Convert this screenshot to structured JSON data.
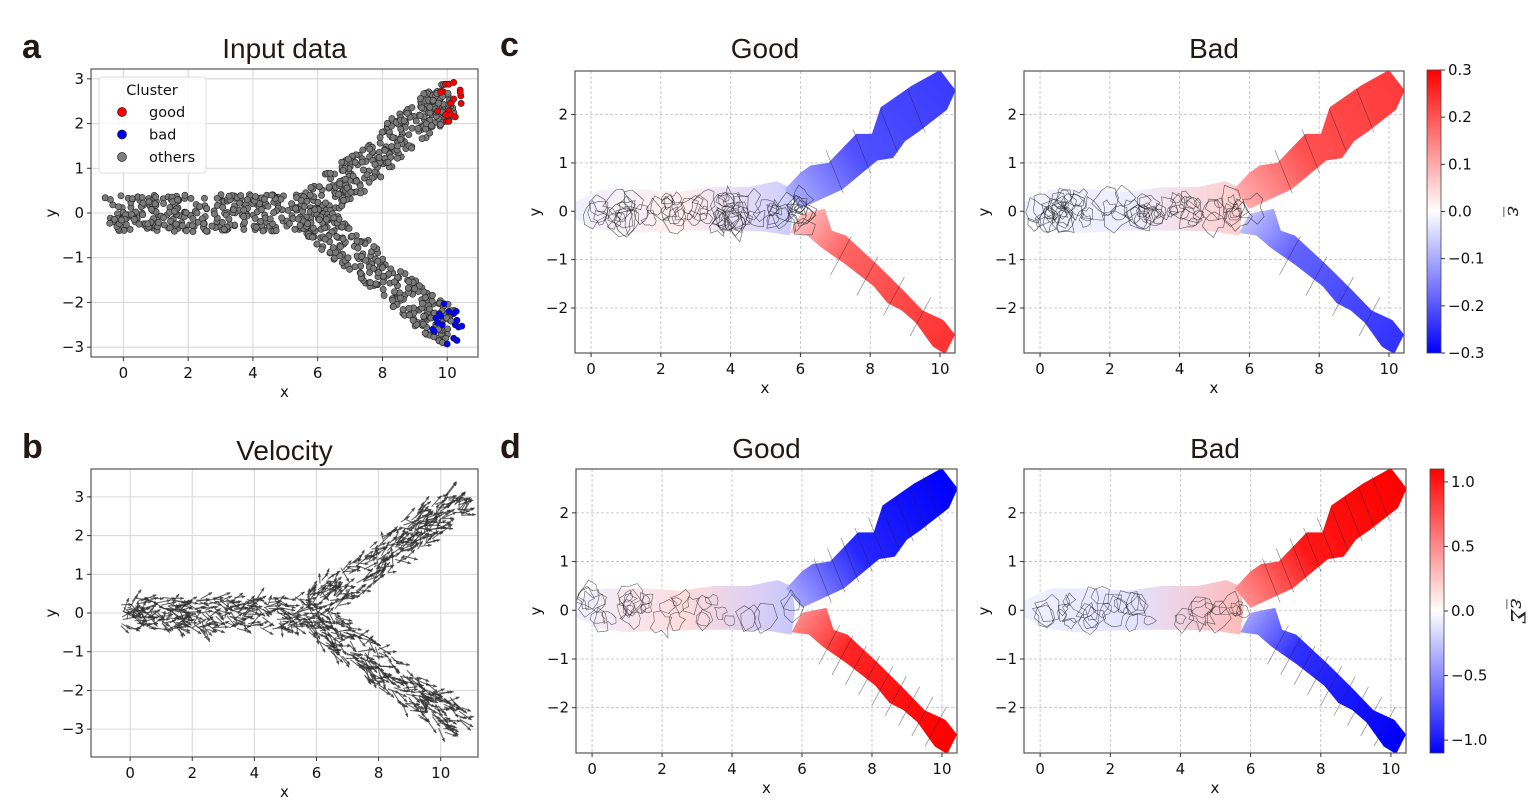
{
  "figure": {
    "panel_letters": [
      "a",
      "b",
      "c",
      "d"
    ]
  },
  "chart_data": [
    {
      "id": "a",
      "type": "scatter",
      "title": "Input data",
      "xlabel": "x",
      "ylabel": "y",
      "xlim": [
        -1.0,
        10.95
      ],
      "ylim": [
        -3.22,
        3.22
      ],
      "xticks": [
        0,
        2,
        4,
        6,
        8,
        10
      ],
      "yticks": [
        -3,
        -2,
        -1,
        0,
        1,
        2,
        3
      ],
      "xtick_labels": [
        "0",
        "2",
        "4",
        "6",
        "8",
        "10"
      ],
      "ytick_labels": [
        "−3",
        "−2",
        "−1",
        "0",
        "1",
        "2",
        "3"
      ],
      "grid": true,
      "legend": {
        "title": "Cluster",
        "placement": "upper-left",
        "entries": [
          {
            "label": "good",
            "color": "#ff0000"
          },
          {
            "label": "bad",
            "color": "#0000ff"
          },
          {
            "label": "others",
            "color": "#808080"
          }
        ]
      },
      "trunk": {
        "x_range": [
          -0.4,
          5.8
        ],
        "y_center": 0.0,
        "y_halfwidth": 0.42
      },
      "branches": [
        {
          "name": "upper",
          "centerline": [
            [
              5.8,
              0.05
            ],
            [
              6.6,
              0.6
            ],
            [
              7.5,
              1.0
            ],
            [
              8.3,
              1.6
            ],
            [
              9.0,
              2.0
            ],
            [
              9.6,
              2.35
            ],
            [
              10.1,
              2.6
            ]
          ],
          "halfwidth": 0.45
        },
        {
          "name": "lower",
          "centerline": [
            [
              5.8,
              -0.05
            ],
            [
              6.6,
              -0.6
            ],
            [
              7.5,
              -1.05
            ],
            [
              8.3,
              -1.6
            ],
            [
              9.0,
              -2.0
            ],
            [
              9.6,
              -2.35
            ],
            [
              10.1,
              -2.55
            ]
          ],
          "halfwidth": 0.45
        }
      ],
      "others_count": 900,
      "good_points": [
        [
          9.85,
          2.72
        ],
        [
          9.95,
          2.88
        ],
        [
          10.05,
          2.88
        ],
        [
          10.2,
          2.92
        ],
        [
          10.4,
          2.75
        ],
        [
          10.42,
          2.62
        ],
        [
          10.43,
          2.45
        ],
        [
          10.2,
          2.55
        ],
        [
          10.1,
          2.45
        ],
        [
          10.05,
          2.28
        ],
        [
          9.7,
          2.28
        ],
        [
          9.95,
          2.2
        ],
        [
          10.1,
          2.2
        ],
        [
          10.25,
          2.15
        ],
        [
          9.98,
          2.05
        ],
        [
          10.05,
          2.05
        ],
        [
          10.4,
          2.7
        ],
        [
          9.8,
          2.7
        ]
      ],
      "bad_points": [
        [
          9.9,
          -2.03
        ],
        [
          9.75,
          -2.25
        ],
        [
          9.8,
          -2.3
        ],
        [
          10.05,
          -2.2
        ],
        [
          10.2,
          -2.25
        ],
        [
          10.28,
          -2.2
        ],
        [
          10.3,
          -2.4
        ],
        [
          10.25,
          -2.5
        ],
        [
          10.35,
          -2.55
        ],
        [
          10.45,
          -2.53
        ],
        [
          10.2,
          -2.8
        ],
        [
          10.3,
          -2.85
        ],
        [
          10.0,
          -2.93
        ],
        [
          9.65,
          -2.35
        ],
        [
          9.7,
          -2.45
        ],
        [
          9.85,
          -2.5
        ],
        [
          9.6,
          -2.65
        ],
        [
          9.55,
          -2.6
        ]
      ]
    },
    {
      "id": "b",
      "type": "quiver",
      "title": "Velocity",
      "xlabel": "x",
      "ylabel": "y",
      "xlim": [
        -1.26,
        11.2
      ],
      "ylim": [
        -3.72,
        3.72
      ],
      "xticks": [
        0,
        2,
        4,
        6,
        8,
        10
      ],
      "yticks": [
        -3,
        -2,
        -1,
        0,
        1,
        2,
        3
      ],
      "xtick_labels": [
        "0",
        "2",
        "4",
        "6",
        "8",
        "10"
      ],
      "ytick_labels": [
        "−3",
        "−2",
        "−1",
        "0",
        "1",
        "2",
        "3"
      ],
      "grid": true,
      "arrow_color": "#333333",
      "trunk": {
        "x_range": [
          -0.4,
          5.8
        ],
        "y_center": 0.0,
        "y_halfwidth": 0.42,
        "mean_direction": [
          1,
          0
        ]
      },
      "branches": [
        {
          "name": "upper",
          "centerline": [
            [
              5.8,
              0.05
            ],
            [
              6.6,
              0.6
            ],
            [
              7.5,
              1.0
            ],
            [
              8.3,
              1.6
            ],
            [
              9.0,
              2.0
            ],
            [
              9.6,
              2.35
            ],
            [
              10.6,
              2.9
            ]
          ],
          "halfwidth": 0.45
        },
        {
          "name": "lower",
          "centerline": [
            [
              5.8,
              -0.05
            ],
            [
              6.6,
              -0.6
            ],
            [
              7.5,
              -1.05
            ],
            [
              8.3,
              -1.6
            ],
            [
              9.0,
              -2.0
            ],
            [
              9.6,
              -2.35
            ],
            [
              10.6,
              -2.8
            ]
          ],
          "halfwidth": 0.45
        }
      ],
      "arrow_count": 900
    },
    {
      "id": "c-good",
      "type": "heatmap",
      "title": "Good",
      "xlabel": "x",
      "ylabel": "y",
      "xlim": [
        -0.46,
        10.43
      ],
      "ylim": [
        -2.93,
        2.9
      ],
      "xticks": [
        0,
        2,
        4,
        6,
        8,
        10
      ],
      "yticks": [
        -2,
        -1,
        0,
        1,
        2
      ],
      "xtick_labels": [
        "0",
        "2",
        "4",
        "6",
        "8",
        "10"
      ],
      "ytick_labels": [
        "−2",
        "−1",
        "0",
        "1",
        "2"
      ],
      "grid": "dashed",
      "colormap": "bwr",
      "vlim": [
        -0.3,
        0.3
      ],
      "value_trunk": 0.0,
      "value_upper_branch_end": -0.23,
      "value_lower_branch_end": 0.24,
      "value_upper_branch_start": -0.1,
      "value_lower_branch_start": 0.07
    },
    {
      "id": "c-bad",
      "type": "heatmap",
      "title": "Bad",
      "xlabel": "x",
      "ylabel": "y",
      "xlim": [
        -0.46,
        10.43
      ],
      "ylim": [
        -2.93,
        2.9
      ],
      "xticks": [
        0,
        2,
        4,
        6,
        8,
        10
      ],
      "yticks": [
        -2,
        -1,
        0,
        1,
        2
      ],
      "xtick_labels": [
        "0",
        "2",
        "4",
        "6",
        "8",
        "10"
      ],
      "ytick_labels": [
        "−2",
        "−1",
        "0",
        "1",
        "2"
      ],
      "grid": "dashed",
      "colormap": "bwr",
      "vlim": [
        -0.3,
        0.3
      ],
      "value_trunk": 0.0,
      "value_upper_branch_end": 0.23,
      "value_lower_branch_end": -0.24,
      "value_upper_branch_start": 0.1,
      "value_lower_branch_start": -0.07,
      "colorbar": {
        "label": "ε̲",
        "ticks": [
          0.3,
          0.2,
          0.1,
          0.0,
          -0.1,
          -0.2,
          -0.3
        ],
        "tick_labels": [
          "0.3",
          "0.2",
          "0.1",
          "0.0",
          "−0.1",
          "−0.2",
          "−0.3"
        ]
      }
    },
    {
      "id": "d-good",
      "type": "heatmap",
      "title": "Good",
      "xlabel": "x",
      "ylabel": "y",
      "xlim": [
        -0.46,
        10.43
      ],
      "ylim": [
        -2.93,
        2.9
      ],
      "xticks": [
        0,
        2,
        4,
        6,
        8,
        10
      ],
      "yticks": [
        -2,
        -1,
        0,
        1,
        2
      ],
      "xtick_labels": [
        "0",
        "2",
        "4",
        "6",
        "8",
        "10"
      ],
      "ytick_labels": [
        "−2",
        "−1",
        "0",
        "1",
        "2"
      ],
      "grid": "dashed",
      "colormap": "bwr",
      "vlim": [
        -1.1,
        1.1
      ],
      "value_trunk": 0.0,
      "value_upper_branch_end": -1.1,
      "value_lower_branch_end": 1.1,
      "value_upper_branch_start": -0.4,
      "value_lower_branch_start": 0.5
    },
    {
      "id": "d-bad",
      "type": "heatmap",
      "title": "Bad",
      "xlabel": "x",
      "ylabel": "y",
      "xlim": [
        -0.46,
        10.43
      ],
      "ylim": [
        -2.93,
        2.9
      ],
      "xticks": [
        0,
        2,
        4,
        6,
        8,
        10
      ],
      "yticks": [
        -2,
        -1,
        0,
        1,
        2
      ],
      "xtick_labels": [
        "0",
        "2",
        "4",
        "6",
        "8",
        "10"
      ],
      "ytick_labels": [
        "−2",
        "−1",
        "0",
        "1",
        "2"
      ],
      "grid": "dashed",
      "colormap": "bwr",
      "vlim": [
        -1.1,
        1.1
      ],
      "value_trunk": 0.0,
      "value_upper_branch_end": 1.1,
      "value_lower_branch_end": -1.1,
      "value_upper_branch_start": 0.5,
      "value_lower_branch_start": -0.4,
      "colorbar": {
        "label": "ε̲Σ",
        "ticks": [
          1.0,
          0.5,
          0.0,
          -0.5,
          -1.0
        ],
        "tick_labels": [
          "1.0",
          "0.5",
          "0.0",
          "−0.5",
          "−1.0"
        ]
      }
    }
  ],
  "branch_shape": {
    "trunk": [
      [
        -0.45,
        0.2
      ],
      [
        0.3,
        0.45
      ],
      [
        1.5,
        0.45
      ],
      [
        2.5,
        0.4
      ],
      [
        3.5,
        0.5
      ],
      [
        4.5,
        0.5
      ],
      [
        5.3,
        0.62
      ],
      [
        5.7,
        0.5
      ],
      [
        5.8,
        0.0
      ],
      [
        5.7,
        -0.5
      ],
      [
        5.0,
        -0.42
      ],
      [
        4.0,
        -0.4
      ],
      [
        3.0,
        -0.4
      ],
      [
        2.0,
        -0.42
      ],
      [
        1.0,
        -0.45
      ],
      [
        0.2,
        -0.38
      ],
      [
        -0.45,
        -0.15
      ]
    ],
    "upper": [
      [
        5.55,
        0.45
      ],
      [
        6.0,
        0.8
      ],
      [
        6.3,
        0.95
      ],
      [
        6.8,
        1.0
      ],
      [
        7.6,
        1.6
      ],
      [
        8.05,
        1.6
      ],
      [
        8.3,
        2.15
      ],
      [
        9.2,
        2.6
      ],
      [
        10.0,
        2.92
      ],
      [
        10.45,
        2.5
      ],
      [
        10.2,
        2.1
      ],
      [
        9.4,
        1.65
      ],
      [
        9.0,
        1.45
      ],
      [
        8.65,
        1.1
      ],
      [
        8.2,
        1.05
      ],
      [
        7.7,
        0.75
      ],
      [
        7.2,
        0.45
      ],
      [
        6.6,
        0.25
      ],
      [
        6.0,
        0.05
      ]
    ],
    "lower": [
      [
        6.0,
        -0.05
      ],
      [
        6.7,
        0.05
      ],
      [
        6.9,
        -0.4
      ],
      [
        7.3,
        -0.5
      ],
      [
        8.2,
        -1.1
      ],
      [
        8.9,
        -1.6
      ],
      [
        9.5,
        -2.05
      ],
      [
        10.1,
        -2.25
      ],
      [
        10.43,
        -2.55
      ],
      [
        10.15,
        -2.95
      ],
      [
        9.8,
        -2.8
      ],
      [
        9.3,
        -2.3
      ],
      [
        8.9,
        -2.05
      ],
      [
        8.5,
        -1.9
      ],
      [
        8.1,
        -1.55
      ],
      [
        7.3,
        -1.1
      ],
      [
        6.6,
        -0.75
      ],
      [
        6.2,
        -0.5
      ],
      [
        5.7,
        -0.45
      ]
    ]
  }
}
